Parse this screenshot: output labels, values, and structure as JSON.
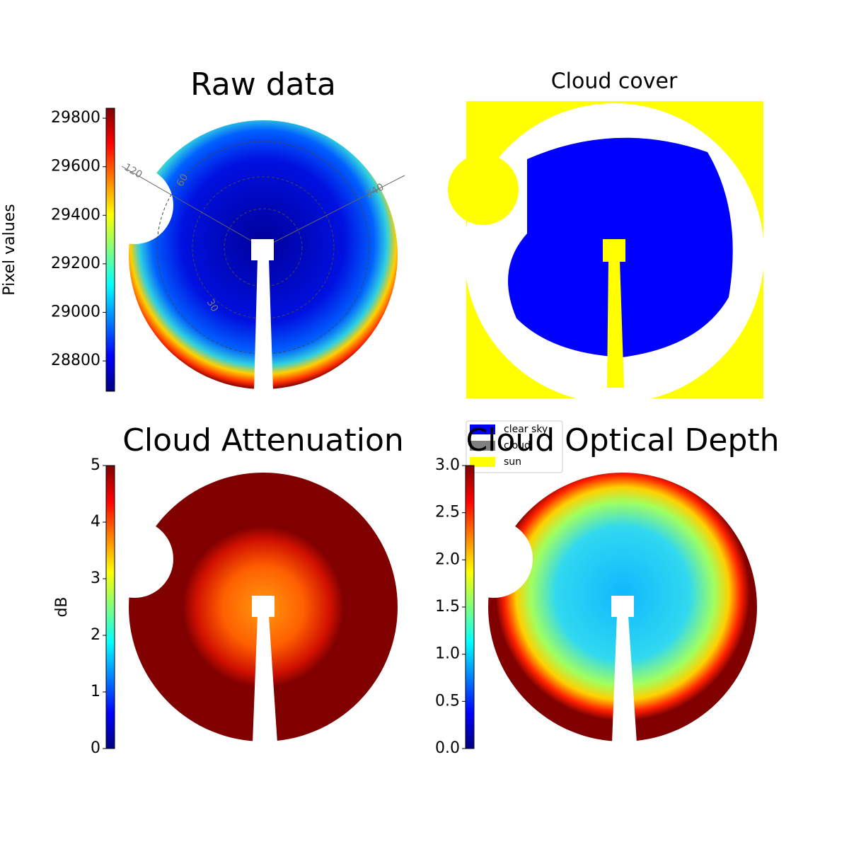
{
  "chart_data": [
    {
      "type": "image",
      "title": "Raw data",
      "colorbar_label": "Pixel values",
      "ylim": [
        28675,
        29841
      ],
      "yticks": [
        28800,
        29000,
        29200,
        29400,
        29600,
        29800
      ],
      "polar_labels": [
        "120",
        "60",
        "240",
        "30"
      ]
    },
    {
      "type": "image",
      "title": "Cloud cover",
      "series": [
        {
          "name": "clear sky",
          "color": "#0000ff"
        },
        {
          "name": "cloud",
          "color": "#808080"
        },
        {
          "name": "sun",
          "color": "#ffff00"
        }
      ]
    },
    {
      "type": "image",
      "title": "Cloud Attenuation",
      "colorbar_label": "dB",
      "ylim": [
        0,
        5
      ],
      "yticks": [
        0,
        1,
        2,
        3,
        4,
        5
      ]
    },
    {
      "type": "image",
      "title": "Cloud Optical Depth",
      "ylim": [
        0,
        3
      ],
      "yticks": [
        {
          "value": 0,
          "label": "0.0"
        },
        {
          "value": 0.5,
          "label": "0.5"
        },
        {
          "value": 1,
          "label": "1.0"
        },
        {
          "value": 1.5,
          "label": "1.5"
        },
        {
          "value": 2,
          "label": "2.0"
        },
        {
          "value": 2.5,
          "label": "2.5"
        },
        {
          "value": 3,
          "label": "3.0"
        }
      ]
    }
  ]
}
